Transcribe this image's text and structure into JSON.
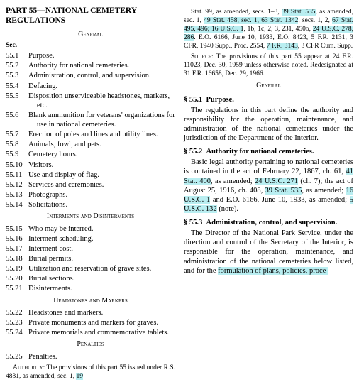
{
  "leftCol": {
    "partTitle": "PART 55—NATIONAL CEMETERY REGULATIONS",
    "generalHeader": "General",
    "secLabel": "Sec.",
    "tocGeneral": [
      {
        "num": "55.1",
        "title": "Purpose."
      },
      {
        "num": "55.2",
        "title": "Authority for national cemeteries."
      },
      {
        "num": "55.3",
        "title": "Administration, control, and supervision."
      },
      {
        "num": "55.4",
        "title": "Defacing."
      },
      {
        "num": "55.5",
        "title": "Disposition unserviceable headstones, markers, etc."
      },
      {
        "num": "55.6",
        "title": "Blank ammunition for veterans' organizations for use in national cemeteries."
      },
      {
        "num": "55.7",
        "title": "Erection of poles and lines and utility lines."
      },
      {
        "num": "55.8",
        "title": "Animals, fowl, and pets."
      },
      {
        "num": "55.9",
        "title": "Cemetery hours."
      },
      {
        "num": "55.10",
        "title": "Visitors."
      },
      {
        "num": "55.11",
        "title": "Use and display of flag."
      },
      {
        "num": "55.12",
        "title": "Services and ceremonies."
      },
      {
        "num": "55.13",
        "title": "Photographs."
      },
      {
        "num": "55.14",
        "title": "Solicitations."
      }
    ],
    "intermentsHeader": "Interments and Disinterments",
    "tocInterments": [
      {
        "num": "55.15",
        "title": "Who may be interred."
      },
      {
        "num": "55.16",
        "title": "Interment scheduling."
      },
      {
        "num": "55.17",
        "title": "Interment cost."
      },
      {
        "num": "55.18",
        "title": "Burial permits."
      },
      {
        "num": "55.19",
        "title": "Utilization and reservation of grave sites."
      },
      {
        "num": "55.20",
        "title": "Burial sections."
      },
      {
        "num": "55.21",
        "title": "Disinterments."
      }
    ],
    "headstonesHeader": "Headstones and Markers",
    "tocHeadstones": [
      {
        "num": "55.22",
        "title": "Headstones and markers."
      },
      {
        "num": "55.23",
        "title": "Private monuments and markers for graves."
      },
      {
        "num": "55.24",
        "title": "Private memorials and commemorative tablets."
      }
    ],
    "penaltiesHeader": "Penalties",
    "tocPenalties": [
      {
        "num": "55.25",
        "title": "Penalties."
      }
    ],
    "authorityLabel": "Authority:",
    "authorityBody": " The provisions of this part 55 issued under R.S. 4831, as amended, sec. 1, ",
    "authTrail": "19"
  },
  "rightCol": {
    "statPrefix": "Stat. 99, as amended, secs. 1–3, ",
    "hl1": "39 Stat. 535",
    "mid1": ", as amended, sec. 1, ",
    "hl2": "49 Stat. 458, sec. 1, 63 Stat. 1342",
    "mid2": ", secs. 1, 2, ",
    "hl3": "67 Stat. 495, 496; 16 U.S.C. 1",
    "mid3": ", 1b, 1c, 2, 3, 231, 450o, ",
    "hl4": "24 U.S.C. 278, 286",
    "mid4": ". E.O. 6166, June 10, 1933, E.O. 8423, 5 F.R. 2131, 3 CFR, 1940 Supp., Proc. 2554, ",
    "hl5": "7 F.R. 3143",
    "mid5": ", 3 CFR Cum. Supp.",
    "sourceLabel": "Source:",
    "sourceBody": " The provisions of this part 55 appear at 24 F.R. 11023, Dec. 30, 1959 unless otherwise noted. Redesignated at 31 F.R. 16658, Dec. 29, 1966.",
    "generalHeader": "General",
    "s551": {
      "num": "§ 55.1",
      "title": "Purpose."
    },
    "p551": "The regulations in this part define the authority and responsibility for the operation, maintenance, and administration of the national cemeteries under the jurisdiction of the Department of the Interior.",
    "s552": {
      "num": "§ 55.2",
      "title": "Authority for national cemeteries."
    },
    "p552_pre": "Basic legal authority pertaining to national cemeteries is contained in the act of February 22, 1867, ch. 61, ",
    "p552_hl1": "41 Stat. 400",
    "p552_m1": ", as amended; ",
    "p552_hl2": "24 U.S.C. 271",
    "p552_m2": " (ch. 7); the act of August 25, 1916, ch. 408, ",
    "p552_hl3": "39 Stat. 535",
    "p552_m3": ", as amended; ",
    "p552_hl4": "16 U.S.C. 1",
    "p552_m4": " and E.O. 6166, June 10, 1933, as amended; ",
    "p552_hl5": "5 U.S.C. 132",
    "p552_m5": " (note).",
    "s553": {
      "num": "§ 55.3",
      "title": "Administration, control, and supervision."
    },
    "p553_pre": "The Director of the National Park Service, under the direction and control of the Secretary of the Interior, is responsible for the operation, maintenance, and administration of the national cemeteries below listed, and for the ",
    "p553_hl": "formulation of plans, policies, proce-"
  }
}
